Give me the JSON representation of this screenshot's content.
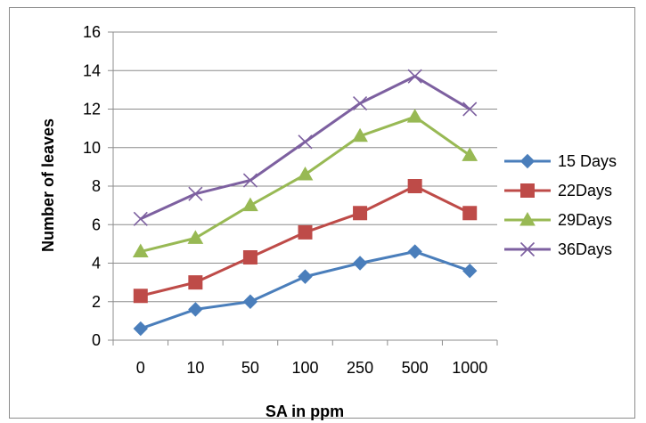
{
  "chart_data": {
    "type": "line",
    "categories": [
      "0",
      "10",
      "50",
      "100",
      "250",
      "500",
      "1000"
    ],
    "series": [
      {
        "name": "15 Days",
        "values": [
          0.6,
          1.6,
          2.0,
          3.3,
          4.0,
          4.6,
          3.6
        ],
        "color": "#4a7ebb",
        "marker": "diamond"
      },
      {
        "name": "22Days",
        "values": [
          2.3,
          3.0,
          4.3,
          5.6,
          6.6,
          8.0,
          6.6
        ],
        "color": "#be4b48",
        "marker": "square"
      },
      {
        "name": "29Days",
        "values": [
          4.6,
          5.3,
          7.0,
          8.6,
          10.6,
          11.6,
          9.6
        ],
        "color": "#98b954",
        "marker": "triangle"
      },
      {
        "name": "36Days",
        "values": [
          6.3,
          7.6,
          8.3,
          10.3,
          12.3,
          13.7,
          12.0
        ],
        "color": "#7d60a0",
        "marker": "x"
      }
    ],
    "title": "",
    "xlabel": "SA in ppm",
    "ylabel": "Number of leaves",
    "ylim": [
      0,
      16
    ],
    "yticks": [
      0,
      2,
      4,
      6,
      8,
      10,
      12,
      14,
      16
    ],
    "grid": true,
    "legend": "right"
  }
}
